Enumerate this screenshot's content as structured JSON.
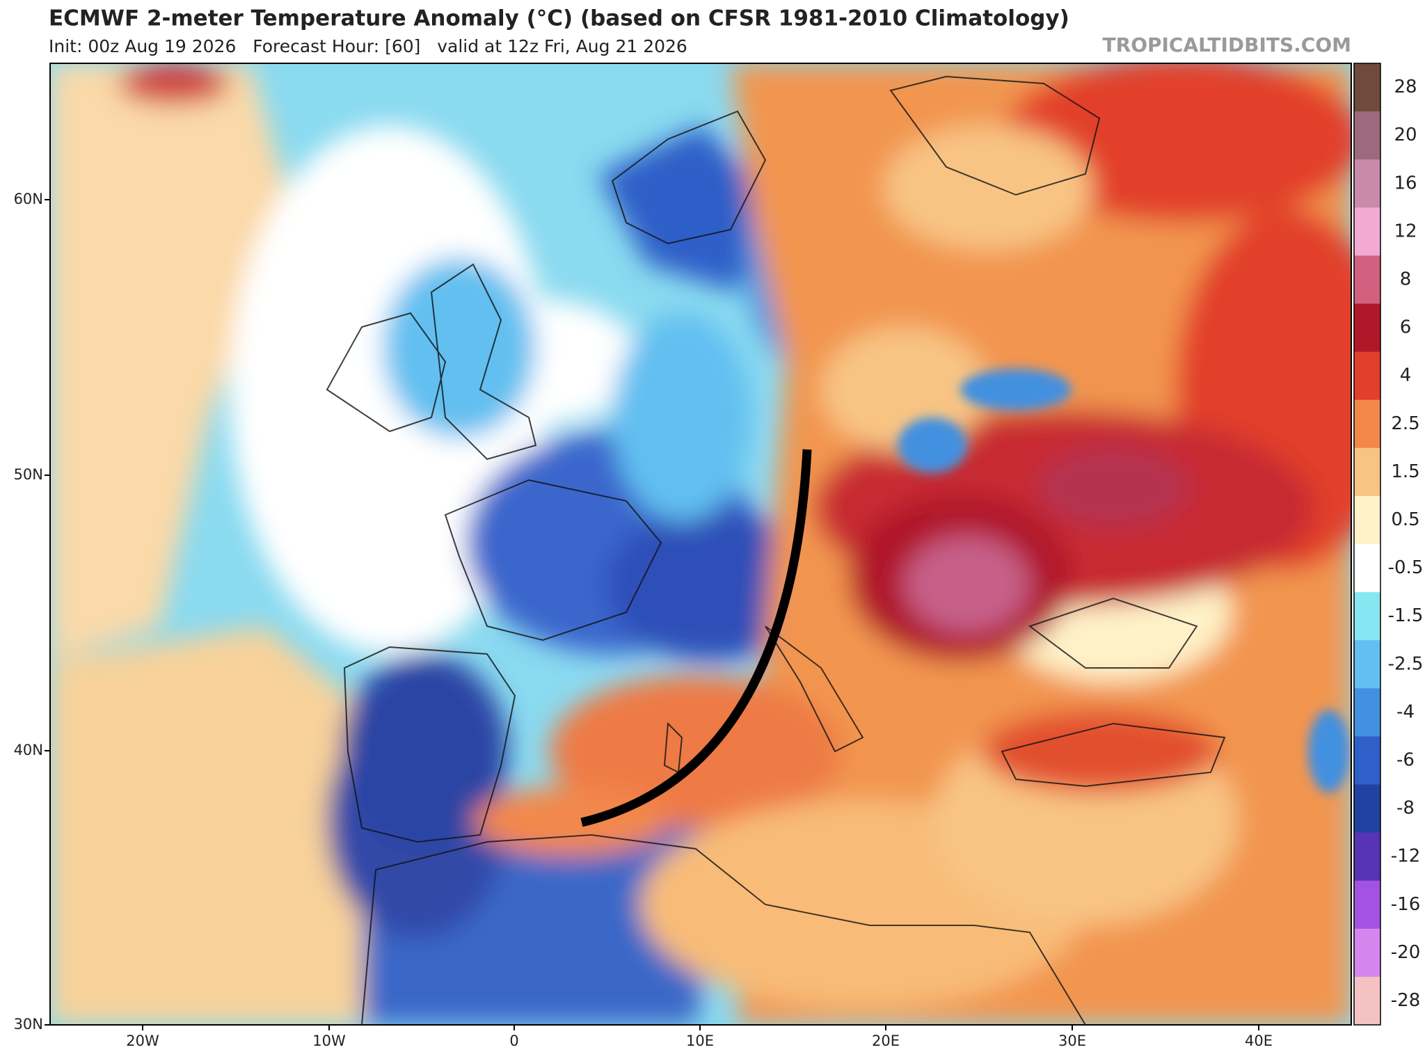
{
  "header": {
    "title": "ECMWF 2-meter Temperature Anomaly (°C) (based on CFSR 1981-2010 Climatology)",
    "subtitle": "Init: 00z Aug 19 2026   Forecast Hour: [60]   valid at 12z Fri, Aug 21 2026",
    "watermark": "TROPICALTIDBITS.COM"
  },
  "map": {
    "lat_labels": [
      "60N",
      "50N",
      "40N",
      "30N"
    ],
    "lon_labels": [
      "20W",
      "10W",
      "0",
      "10E",
      "20E",
      "30E",
      "40E"
    ]
  },
  "colorbar": {
    "labels": [
      "28",
      "20",
      "16",
      "12",
      "8",
      "6",
      "4",
      "2.5",
      "1.5",
      "0.5",
      "-0.5",
      "-1.5",
      "-2.5",
      "-4",
      "-6",
      "-8",
      "-12",
      "-16",
      "-20",
      "-28"
    ],
    "colors": [
      "#6e4b3c",
      "#9c6a7c",
      "#c98aa9",
      "#f2a9d2",
      "#d2607f",
      "#b0182a",
      "#e2402c",
      "#f2884c",
      "#f8c484",
      "#fff2c8",
      "#ffffff",
      "#86e6f2",
      "#62bff0",
      "#4290e0",
      "#2f5fc8",
      "#2242a2",
      "#5634b4",
      "#a452e2",
      "#d586ee",
      "#f4c2c2"
    ]
  }
}
